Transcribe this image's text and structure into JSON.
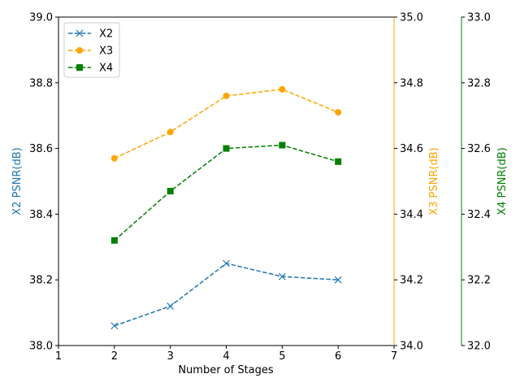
{
  "chart_data": {
    "type": "line",
    "xlabel": "Number of Stages",
    "x": [
      2,
      3,
      4,
      5,
      6
    ],
    "xlim": [
      1,
      7
    ],
    "xticks": [
      "1",
      "2",
      "3",
      "4",
      "5",
      "6",
      "7"
    ],
    "axes": [
      {
        "id": "x2",
        "label": "X2 PSNR(dB)",
        "ylim": [
          38.0,
          39.0
        ],
        "ticks": [
          "38.0",
          "38.2",
          "38.4",
          "38.6",
          "38.8",
          "39.0"
        ],
        "color": "#000000",
        "label_color": "#1f77b4",
        "side": "left"
      },
      {
        "id": "x3",
        "label": "X3 PSNR(dB)",
        "ylim": [
          34.0,
          35.0
        ],
        "ticks": [
          "34.0",
          "34.2",
          "34.4",
          "34.6",
          "34.8",
          "35.0"
        ],
        "color": "#ffa500",
        "label_color": "#ffa500",
        "side": "right"
      },
      {
        "id": "x4",
        "label": "X4 PSNR(dB)",
        "ylim": [
          32.0,
          33.0
        ],
        "ticks": [
          "32.0",
          "32.2",
          "32.4",
          "32.6",
          "32.8",
          "33.0"
        ],
        "color": "#008000",
        "label_color": "#008000",
        "side": "right-outer"
      }
    ],
    "series": [
      {
        "name": "X2",
        "axis": "x2",
        "color": "#1f77b4",
        "marker": "x",
        "linestyle": "dashed",
        "values": [
          38.06,
          38.12,
          38.25,
          38.21,
          38.2
        ]
      },
      {
        "name": "X3",
        "axis": "x3",
        "color": "#ffa500",
        "marker": "circle",
        "linestyle": "dashed",
        "values": [
          34.57,
          34.65,
          34.76,
          34.78,
          34.71
        ]
      },
      {
        "name": "X4",
        "axis": "x4",
        "color": "#008000",
        "marker": "square",
        "linestyle": "dashed",
        "values": [
          32.32,
          32.47,
          32.6,
          32.61,
          32.56
        ]
      }
    ],
    "legend": {
      "position": "top-left",
      "entries": [
        "X2",
        "X3",
        "X4"
      ]
    },
    "grid": false
  }
}
